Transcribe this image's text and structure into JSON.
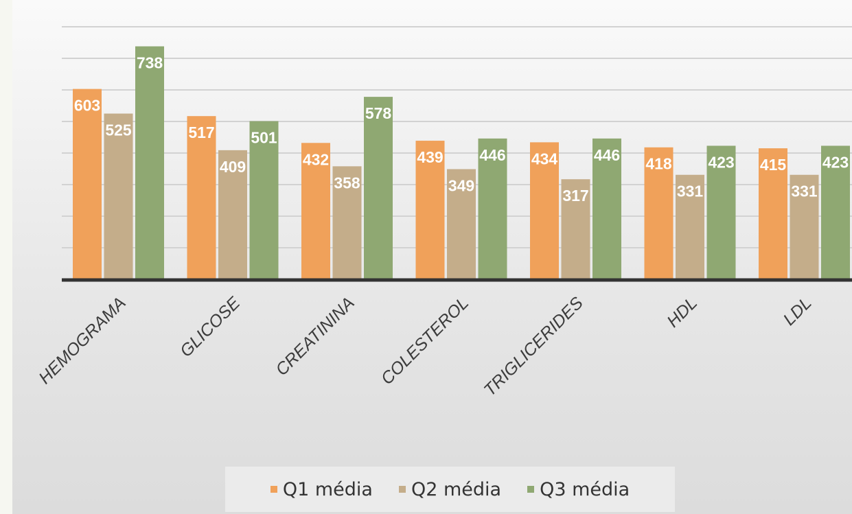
{
  "chart_data": {
    "type": "bar",
    "categories": [
      "HEMOGRAMA",
      "GLICOSE",
      "CREATININA",
      "COLESTEROL",
      "TRIGLICERIDES",
      "HDL",
      "LDL"
    ],
    "series": [
      {
        "name": "Q1 média",
        "color": "#f0a15a",
        "values": [
          603,
          517,
          432,
          439,
          434,
          418,
          415
        ]
      },
      {
        "name": "Q2 média",
        "color": "#c4ad8a",
        "values": [
          525,
          409,
          358,
          349,
          317,
          331,
          331
        ]
      },
      {
        "name": "Q3 média",
        "color": "#8fa872",
        "values": [
          738,
          501,
          578,
          446,
          446,
          423,
          423
        ]
      }
    ],
    "ylim": [
      0,
      900
    ],
    "grid": true,
    "data_labels": true,
    "legend_position": "bottom"
  }
}
